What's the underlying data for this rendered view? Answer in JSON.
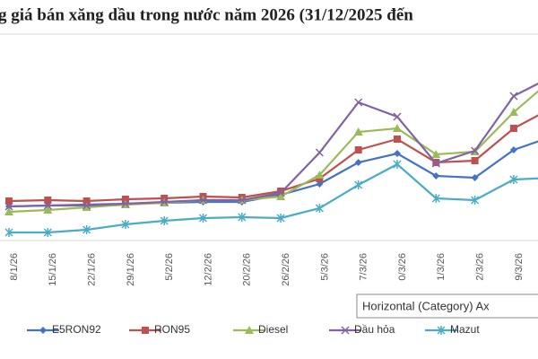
{
  "chart_data": {
    "type": "line",
    "title": "g giá bán xăng dầu trong nước năm 2026 (31/12/2025 đến",
    "categories": [
      "8/1/26",
      "15/1/26",
      "22/1/26",
      "29/1/26",
      "5/2/26",
      "12/2/26",
      "20/2/26",
      "26/2/26",
      "5/3/26",
      "7/3/26",
      "0/3/26",
      "1/3/26",
      "2/3/26",
      "9/3/26",
      null
    ],
    "series": [
      {
        "name": "E5RON92",
        "color": "#4472c4",
        "marker": "diamond",
        "values": [
          70,
          71,
          72,
          73,
          74,
          75,
          75,
          83,
          95,
          119,
          129,
          104,
          102,
          133,
          148
        ]
      },
      {
        "name": "RON95",
        "color": "#c0504d",
        "marker": "square",
        "values": [
          76,
          77,
          76,
          78,
          79,
          81,
          80,
          87,
          101,
          133,
          145,
          119,
          121,
          157,
          180
        ]
      },
      {
        "name": "Diesel",
        "color": "#9bbb59",
        "marker": "triangle",
        "values": [
          64,
          66,
          69,
          72,
          74,
          77,
          77,
          81,
          105,
          153,
          157,
          128,
          131,
          175,
          212
        ]
      },
      {
        "name": "Dầu hỏa",
        "color": "#8064a2",
        "marker": "x",
        "values": [
          70,
          71,
          71,
          73,
          75,
          77,
          77,
          85,
          130,
          186,
          170,
          118,
          132,
          193,
          215
        ]
      },
      {
        "name": "Mazut",
        "color": "#4bacc6",
        "marker": "star",
        "values": [
          41,
          41,
          44,
          50,
          54,
          57,
          58,
          57,
          68,
          94,
          117,
          79,
          77,
          100,
          102
        ]
      }
    ],
    "ylim": [
      40,
      260
    ],
    "tooltip": "Horizontal (Category) Ax"
  }
}
